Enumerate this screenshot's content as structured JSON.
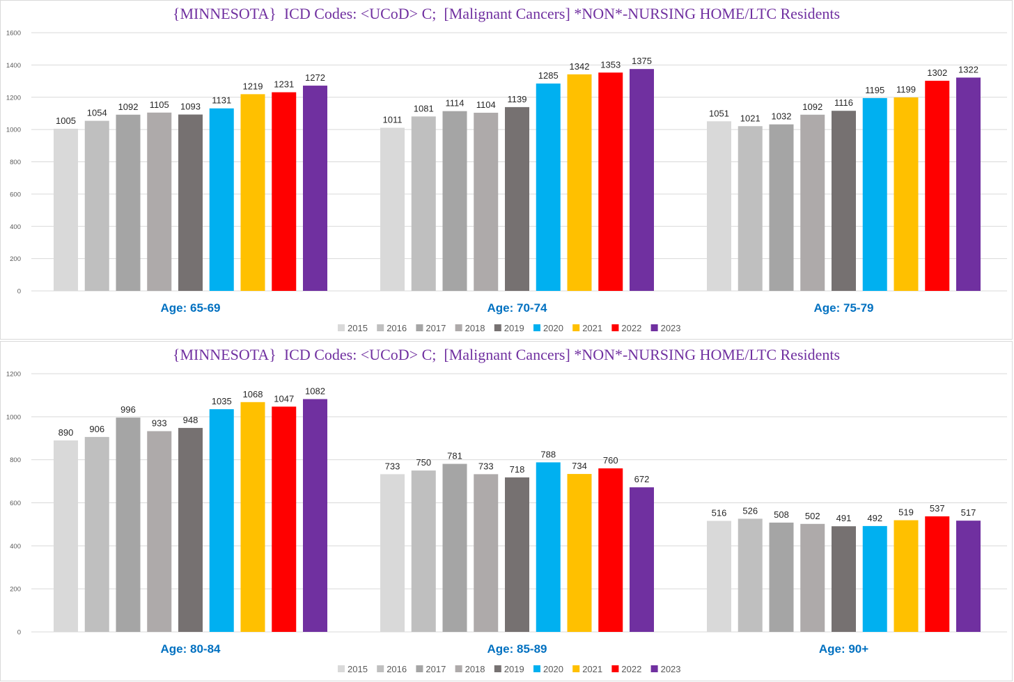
{
  "colors": {
    "2015": "#d9d9d9",
    "2016": "#bfbfbf",
    "2017": "#a5a5a5",
    "2018": "#aeaaaa",
    "2019": "#767171",
    "2020": "#00b0f0",
    "2021": "#ffc000",
    "2022": "#ff0000",
    "2023": "#7030a0",
    "title": "#7030a0",
    "group_label": "#0070c0",
    "grid": "#d9d9d9"
  },
  "chart_data": [
    {
      "type": "bar",
      "title": "{MINNESOTA}  ICD Codes: <UCoD> C;  [Malignant Cancers] *NON*-NURSING HOME/LTC Residents",
      "categories": [
        "Age: 65-69",
        "Age: 70-74",
        "Age: 75-79"
      ],
      "ylim": [
        0,
        1600
      ],
      "yticks": [
        "0",
        "200",
        "400",
        "600",
        "800",
        "1000",
        "1200",
        "1400",
        "1600"
      ],
      "legend": "bottom",
      "grid": true,
      "series": [
        {
          "name": "2015",
          "values": [
            1005,
            1011,
            1051
          ]
        },
        {
          "name": "2016",
          "values": [
            1054,
            1081,
            1021
          ]
        },
        {
          "name": "2017",
          "values": [
            1092,
            1114,
            1032
          ]
        },
        {
          "name": "2018",
          "values": [
            1105,
            1104,
            1092
          ]
        },
        {
          "name": "2019",
          "values": [
            1093,
            1139,
            1116
          ]
        },
        {
          "name": "2020",
          "values": [
            1131,
            1285,
            1195
          ]
        },
        {
          "name": "2021",
          "values": [
            1219,
            1342,
            1199
          ]
        },
        {
          "name": "2022",
          "values": [
            1231,
            1353,
            1302
          ]
        },
        {
          "name": "2023",
          "values": [
            1272,
            1375,
            1322
          ]
        }
      ]
    },
    {
      "type": "bar",
      "title": "{MINNESOTA}  ICD Codes: <UCoD> C;  [Malignant Cancers] *NON*-NURSING HOME/LTC Residents",
      "categories": [
        "Age: 80-84",
        "Age: 85-89",
        "Age: 90+"
      ],
      "ylim": [
        0,
        1200
      ],
      "yticks": [
        "0",
        "200",
        "400",
        "600",
        "800",
        "1000",
        "1200"
      ],
      "legend": "bottom",
      "grid": true,
      "series": [
        {
          "name": "2015",
          "values": [
            890,
            733,
            516
          ]
        },
        {
          "name": "2016",
          "values": [
            906,
            750,
            526
          ]
        },
        {
          "name": "2017",
          "values": [
            996,
            781,
            508
          ]
        },
        {
          "name": "2018",
          "values": [
            933,
            733,
            502
          ]
        },
        {
          "name": "2019",
          "values": [
            948,
            718,
            491
          ]
        },
        {
          "name": "2020",
          "values": [
            1035,
            788,
            492
          ]
        },
        {
          "name": "2021",
          "values": [
            1068,
            734,
            519
          ]
        },
        {
          "name": "2022",
          "values": [
            1047,
            760,
            537
          ]
        },
        {
          "name": "2023",
          "values": [
            1082,
            672,
            517
          ]
        }
      ]
    }
  ]
}
